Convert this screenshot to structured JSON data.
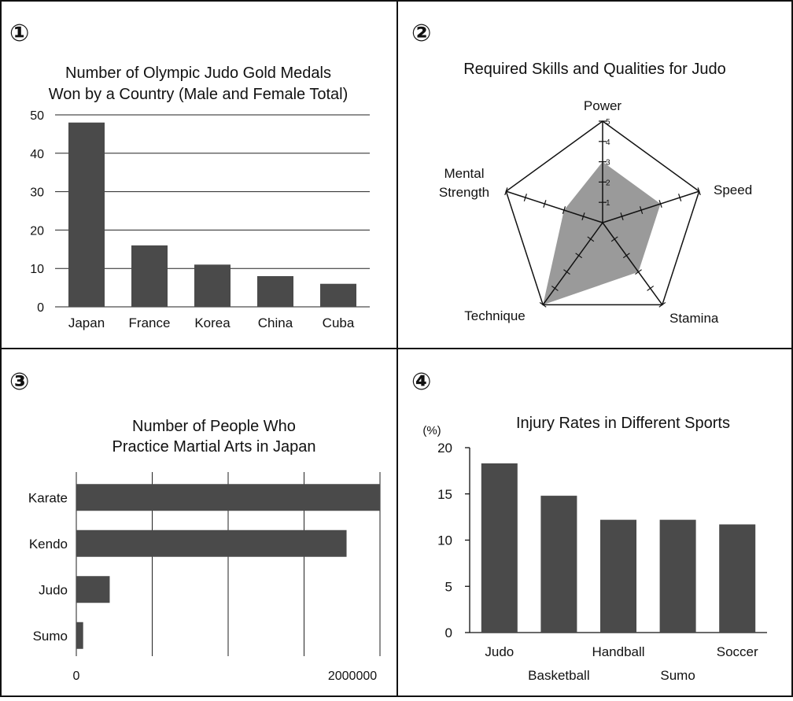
{
  "chart_data": [
    {
      "panel_number": "①",
      "type": "bar",
      "title": "Number of Olympic Judo Gold Medals Won by a Country (Male and Female Total)",
      "title_lines": [
        "Number of Olympic Judo Gold Medals",
        "Won by a Country (Male and Female Total)"
      ],
      "categories": [
        "Japan",
        "France",
        "Korea",
        "China",
        "Cuba"
      ],
      "values": [
        48,
        16,
        11,
        8,
        6
      ],
      "ylim": [
        0,
        50
      ],
      "yticks": [
        0,
        10,
        20,
        30,
        40,
        50
      ],
      "grid": true,
      "bar_color": "#4a4a4a"
    },
    {
      "panel_number": "②",
      "type": "radar",
      "title": "Required Skills and Qualities for Judo",
      "axes": [
        "Power",
        "Speed",
        "Stamina",
        "Technique",
        "Mental Strength"
      ],
      "axis_label_lines": [
        [
          "Power"
        ],
        [
          "Speed"
        ],
        [
          "Stamina"
        ],
        [
          "Technique"
        ],
        [
          "Mental",
          "Strength"
        ]
      ],
      "values": [
        3,
        3,
        3,
        5,
        2
      ],
      "range": [
        0,
        5
      ],
      "ticks": [
        1,
        2,
        3,
        4,
        5
      ],
      "fill_color": "#9a9a9a"
    },
    {
      "panel_number": "③",
      "type": "bar",
      "orientation": "horizontal",
      "title": "Number of People Who Practice Martial Arts in Japan",
      "title_lines": [
        "Number of People Who",
        "Practice Martial Arts in Japan"
      ],
      "categories": [
        "Karate",
        "Kendo",
        "Judo",
        "Sumo"
      ],
      "values": [
        2000000,
        1780000,
        220000,
        45000
      ],
      "xlim": [
        0,
        2000000
      ],
      "xtick_labels": [
        "0",
        "2000000"
      ],
      "grid": true,
      "bar_color": "#4a4a4a"
    },
    {
      "panel_number": "④",
      "type": "bar",
      "title": "Injury Rates in Different Sports",
      "ylabel": "(%)",
      "categories": [
        "Judo",
        "Basketball",
        "Handball",
        "Sumo",
        "Soccer"
      ],
      "values": [
        18.3,
        14.8,
        12.2,
        12.2,
        11.7
      ],
      "ylim": [
        0,
        20
      ],
      "yticks": [
        0,
        5,
        10,
        15,
        20
      ],
      "grid": false,
      "bar_color": "#4a4a4a"
    }
  ]
}
